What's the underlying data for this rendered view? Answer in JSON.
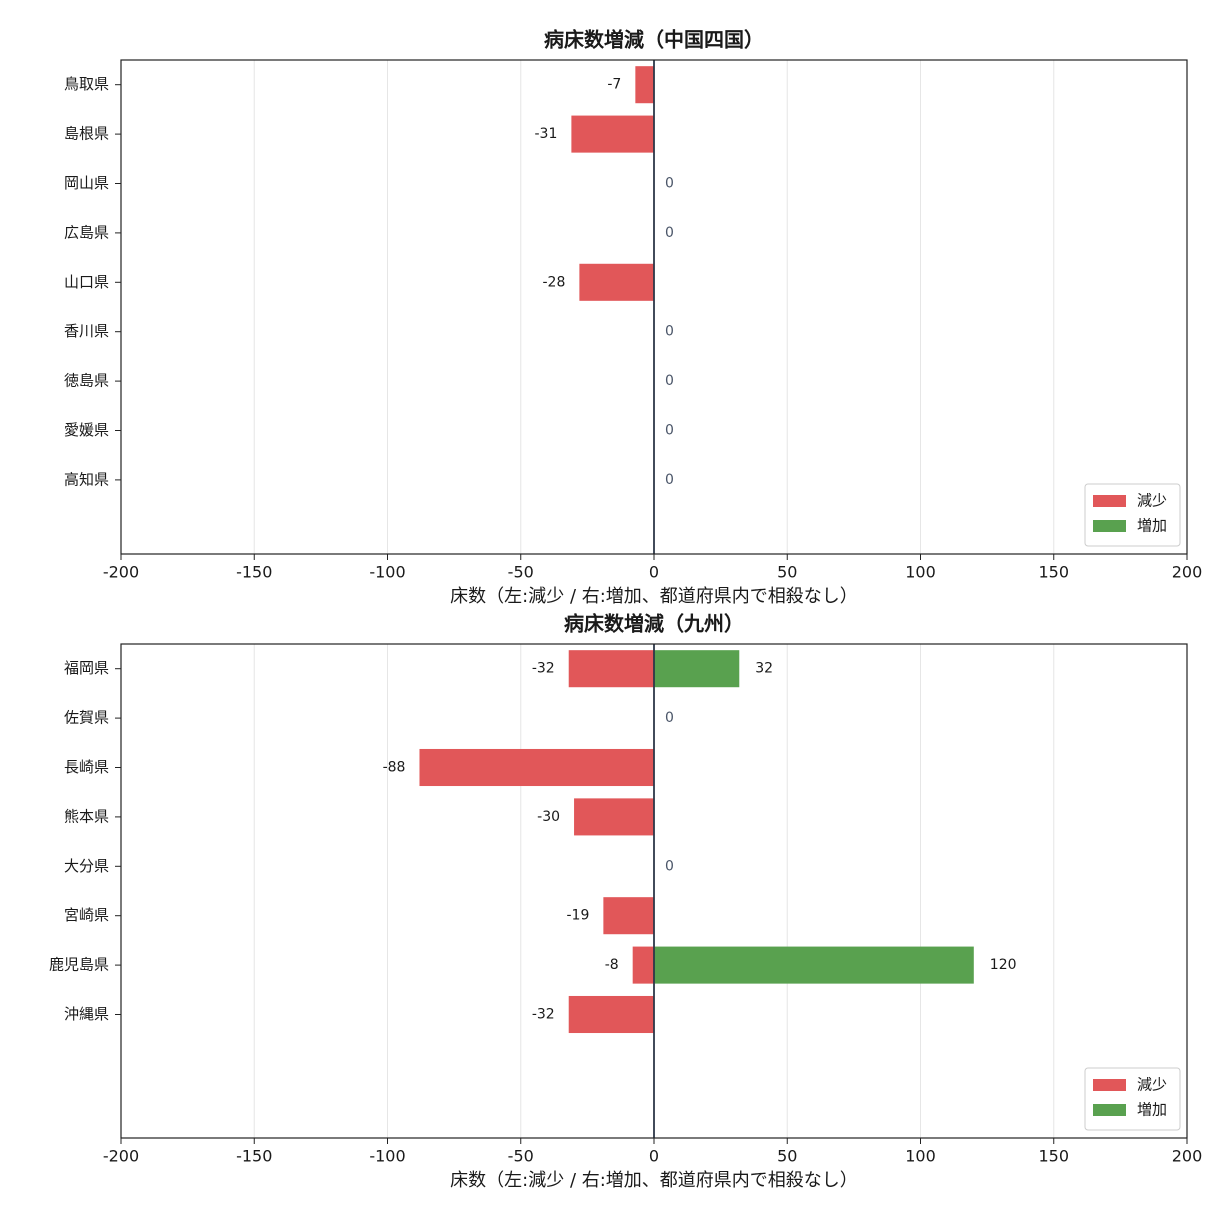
{
  "chart_data": [
    {
      "type": "bar",
      "orientation": "horizontal",
      "title": "病床数増減（中国四国）",
      "xlabel": "床数（左:減少 / 右:増加、都道府県内で相殺なし）",
      "categories": [
        "鳥取県",
        "島根県",
        "岡山県",
        "広島県",
        "山口県",
        "香川県",
        "徳島県",
        "愛媛県",
        "高知県"
      ],
      "series": [
        {
          "name": "減少",
          "color": "#e15759",
          "values": [
            -7,
            -31,
            0,
            0,
            -28,
            0,
            0,
            0,
            0
          ]
        },
        {
          "name": "増加",
          "color": "#59a14f",
          "values": [
            0,
            0,
            0,
            0,
            0,
            0,
            0,
            0,
            0
          ]
        }
      ],
      "xlim": [
        -200,
        200
      ],
      "xticks": [
        -200,
        -150,
        -100,
        -50,
        0,
        50,
        100,
        150,
        200
      ],
      "grid": true,
      "legend": "lower right"
    },
    {
      "type": "bar",
      "orientation": "horizontal",
      "title": "病床数増減（九州）",
      "xlabel": "床数（左:減少 / 右:増加、都道府県内で相殺なし）",
      "categories": [
        "福岡県",
        "佐賀県",
        "長崎県",
        "熊本県",
        "大分県",
        "宮崎県",
        "鹿児島県",
        "沖縄県"
      ],
      "series": [
        {
          "name": "減少",
          "color": "#e15759",
          "values": [
            -32,
            0,
            -88,
            -30,
            0,
            -19,
            -8,
            -32
          ]
        },
        {
          "name": "増加",
          "color": "#59a14f",
          "values": [
            32,
            0,
            0,
            0,
            0,
            0,
            120,
            0
          ]
        }
      ],
      "xlim": [
        -200,
        200
      ],
      "xticks": [
        -200,
        -150,
        -100,
        -50,
        0,
        50,
        100,
        150,
        200
      ],
      "grid": true,
      "legend": "lower right"
    }
  ]
}
